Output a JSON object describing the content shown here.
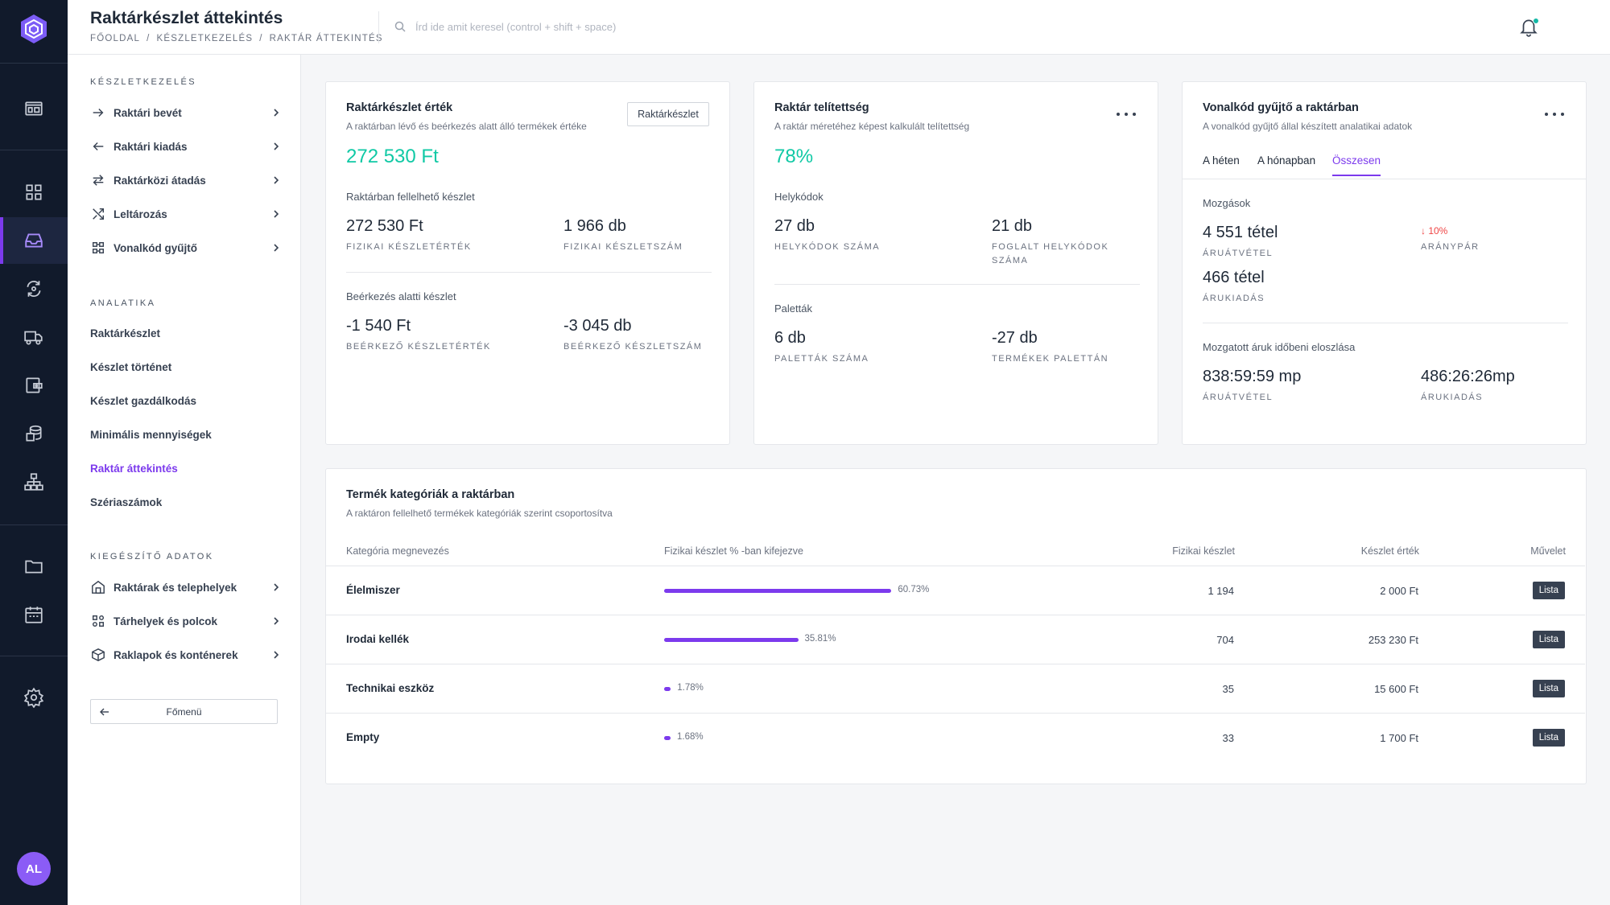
{
  "header": {
    "title": "Raktárkészlet áttekintés",
    "breadcrumb": [
      "Főoldal",
      "Készletkezelés",
      "Raktár áttekintés"
    ],
    "search_placeholder": "Írd ide amit keresel (control + shift + space)"
  },
  "rail": {
    "avatar_initials": "AL",
    "icons": [
      "logo-icon",
      "dashboard-icon",
      "grid-icon",
      "inbox-icon",
      "sync-icon",
      "truck-icon",
      "wallet-icon",
      "stack-icon",
      "hierarchy-icon",
      "folder-icon",
      "calendar-icon",
      "settings-icon"
    ],
    "active": "inbox-icon"
  },
  "sidebar": {
    "section1_title": "Készletkezelés",
    "section1_items": [
      {
        "label": "Raktári bevét",
        "icon": "arrow-right-icon"
      },
      {
        "label": "Raktári kiadás",
        "icon": "arrow-left-icon"
      },
      {
        "label": "Raktárközi átadás",
        "icon": "swap-icon"
      },
      {
        "label": "Leltározás",
        "icon": "shuffle-icon"
      },
      {
        "label": "Vonalkód gyűjtő",
        "icon": "scan-icon"
      }
    ],
    "section2_title": "Analatika",
    "section2_items": [
      {
        "label": "Raktárkészlet"
      },
      {
        "label": "Készlet történet"
      },
      {
        "label": "Készlet gazdálkodás"
      },
      {
        "label": "Minimális mennyiségek"
      },
      {
        "label": "Raktár áttekintés"
      },
      {
        "label": "Szériaszámok"
      }
    ],
    "active_item": "Raktár áttekintés",
    "section3_title": "Kiegészítő adatok",
    "section3_items": [
      {
        "label": "Raktárak és telephelyek",
        "icon": "building-icon"
      },
      {
        "label": "Tárhelyek és polcok",
        "icon": "shelves-icon"
      },
      {
        "label": "Raklapok és konténerek",
        "icon": "box-icon"
      }
    ],
    "back_label": "Főmenü"
  },
  "card_value": {
    "title": "Raktárkészlet érték",
    "subtitle": "A raktárban lévő és beérkezés alatt álló termékek értéke",
    "button": "Raktárkészlet",
    "big_value": "272 530 Ft",
    "section1": "Raktárban fellelhető készlet",
    "s1_val1": "272 530 Ft",
    "s1_lab1": "Fizikai készletérték",
    "s1_val2": "1 966 db",
    "s1_lab2": "Fizikai készletszám",
    "section2": "Beérkezés alatti készlet",
    "s2_val1": "-1 540 Ft",
    "s2_lab1": "Beérkező készletérték",
    "s2_val2": "-3 045 db",
    "s2_lab2": "Beérkező készletszám"
  },
  "card_capacity": {
    "title": "Raktár telítettség",
    "subtitle": "A raktár méretéhez képest kalkulált telítettség",
    "big_value": "78%",
    "section1": "Helykódok",
    "s1_val1": "27 db",
    "s1_lab1": "Helykódok száma",
    "s1_val2": "21 db",
    "s1_lab2": "Foglalt helykódok száma",
    "section2": "Paletták",
    "s2_val1": "6 db",
    "s2_lab1": "Paletták száma",
    "s2_val2": "-27 db",
    "s2_lab2": "Termékek palettán"
  },
  "card_barcode": {
    "title": "Vonalkód gyűjtő a raktárban",
    "subtitle": "A vonalkód gyűjtő állal készített analatikai adatok",
    "tabs": [
      "A héten",
      "A hónapban",
      "Összesen"
    ],
    "active_tab": "Összesen",
    "section1": "Mozgások",
    "val1": "4 551 tétel",
    "lab1": "Áruátvétel",
    "trend": "↓ 10%",
    "trend_label": "Aránypár",
    "val2": "466 tétel",
    "lab2": "Árukiadás",
    "section2": "Mozgatott áruk időbeni eloszlása",
    "t_val1": "838:59:59 mp",
    "t_lab1": "Áruátvétel",
    "t_val2": "486:26:26mp",
    "t_lab2": "Árukiadás"
  },
  "categories": {
    "title": "Termék kategóriák a raktárban",
    "subtitle": "A raktáron fellelhető termékek kategóriák szerint csoportosítva",
    "columns": [
      "Kategória megnevezés",
      "Fizikai készlet % -ban kifejezve",
      "Fizikai készlet",
      "Készlet érték",
      "Művelet"
    ],
    "rows": [
      {
        "name": "Élelmiszer",
        "percent": 60.73,
        "percent_label": "60.73%",
        "qty": "1 194",
        "value": "2 000 Ft",
        "action": "Lista"
      },
      {
        "name": "Irodai kellék",
        "percent": 35.81,
        "percent_label": "35.81%",
        "qty": "704",
        "value": "253 230 Ft",
        "action": "Lista"
      },
      {
        "name": "Technikai eszköz",
        "percent": 1.78,
        "percent_label": "1.78%",
        "qty": "35",
        "value": "15 600 Ft",
        "action": "Lista"
      },
      {
        "name": "Empty",
        "percent": 1.68,
        "percent_label": "1.68%",
        "qty": "33",
        "value": "1 700 Ft",
        "action": "Lista"
      }
    ]
  },
  "colors": {
    "accent": "#7c3aed",
    "positive": "#10c9a5",
    "negative": "#ef4444",
    "rail": "#111a2b"
  }
}
